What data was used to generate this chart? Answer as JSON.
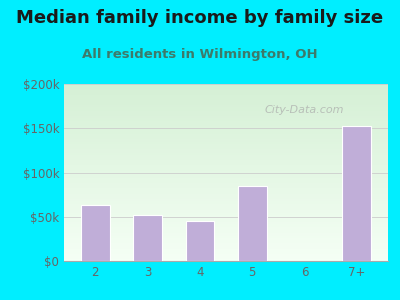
{
  "title": "Median family income by family size",
  "subtitle": "All residents in Wilmington, OH",
  "categories": [
    "2",
    "3",
    "4",
    "5",
    "6",
    "7+"
  ],
  "values": [
    63000,
    52000,
    45000,
    85000,
    0,
    152000
  ],
  "bar_color": "#c0aed8",
  "bar_edge_color": "#d0bee8",
  "ylim": [
    0,
    200000
  ],
  "yticks": [
    0,
    50000,
    100000,
    150000,
    200000
  ],
  "ytick_labels": [
    "$0",
    "$50k",
    "$100k",
    "$150k",
    "$200k"
  ],
  "background_outer": "#00eeff",
  "title_color": "#1a1a1a",
  "subtitle_color": "#3d7a6a",
  "tick_color": "#666666",
  "grid_color": "#cccccc",
  "watermark": "City-Data.com",
  "title_fontsize": 13,
  "subtitle_fontsize": 9.5,
  "tick_fontsize": 8.5
}
